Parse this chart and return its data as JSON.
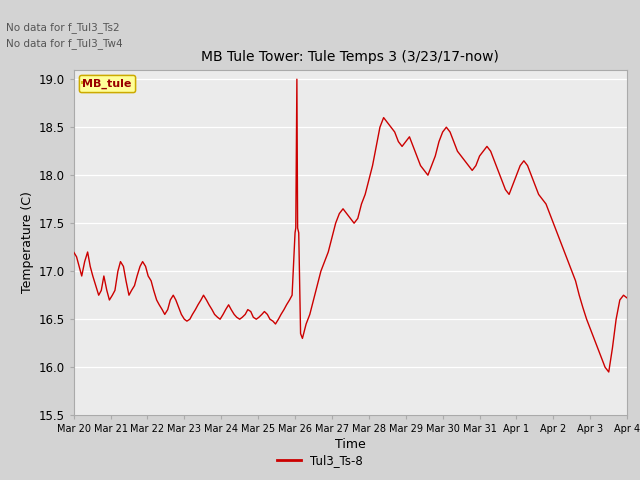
{
  "title": "MB Tule Tower: Tule Temps 3 (3/23/17-now)",
  "xlabel": "Time",
  "ylabel": "Temperature (C)",
  "ylim": [
    15.5,
    19.1
  ],
  "xlim": [
    0,
    15
  ],
  "fig_bg": "#d3d3d3",
  "plot_bg": "#ebebeb",
  "line_color": "#cc0000",
  "legend_label": "Tul3_Ts-8",
  "no_data_text1": "No data for f_Tul3_Ts2",
  "no_data_text2": "No data for f_Tul3_Tw4",
  "mb_tule_label": "MB_tule",
  "yticks": [
    15.5,
    16.0,
    16.5,
    17.0,
    17.5,
    18.0,
    18.5,
    19.0
  ],
  "xtick_labels": [
    "Mar 20",
    "Mar 21",
    "Mar 22",
    "Mar 23",
    "Mar 24",
    "Mar 25",
    "Mar 26",
    "Mar 27",
    "Mar 28",
    "Mar 29",
    "Mar 30",
    "Mar 31",
    "Apr 1",
    "Apr 2",
    "Apr 3",
    "Apr 4"
  ],
  "time_points": [
    0.0,
    0.08,
    0.15,
    0.22,
    0.3,
    0.38,
    0.45,
    0.52,
    0.6,
    0.68,
    0.75,
    0.82,
    0.9,
    0.97,
    1.05,
    1.12,
    1.2,
    1.27,
    1.35,
    1.42,
    1.5,
    1.57,
    1.65,
    1.72,
    1.8,
    1.87,
    1.95,
    2.02,
    2.1,
    2.17,
    2.25,
    2.32,
    2.4,
    2.47,
    2.55,
    2.62,
    2.7,
    2.77,
    2.85,
    2.92,
    3.0,
    3.07,
    3.15,
    3.22,
    3.3,
    3.37,
    3.45,
    3.52,
    3.6,
    3.67,
    3.75,
    3.82,
    3.9,
    3.97,
    4.05,
    4.12,
    4.2,
    4.27,
    4.35,
    4.42,
    4.5,
    4.57,
    4.65,
    4.72,
    4.8,
    4.87,
    4.95,
    5.02,
    5.1,
    5.17,
    5.25,
    5.32,
    5.4,
    5.47,
    5.55,
    5.62,
    5.7,
    5.77,
    5.85,
    5.92,
    6.0,
    6.02,
    6.05,
    6.07,
    6.1,
    6.15,
    6.2,
    6.3,
    6.4,
    6.5,
    6.6,
    6.7,
    6.8,
    6.9,
    7.0,
    7.1,
    7.2,
    7.3,
    7.4,
    7.5,
    7.6,
    7.7,
    7.8,
    7.9,
    8.0,
    8.1,
    8.2,
    8.3,
    8.4,
    8.5,
    8.6,
    8.7,
    8.8,
    8.9,
    9.0,
    9.1,
    9.2,
    9.3,
    9.4,
    9.5,
    9.6,
    9.7,
    9.8,
    9.9,
    10.0,
    10.1,
    10.2,
    10.3,
    10.4,
    10.5,
    10.6,
    10.7,
    10.8,
    10.9,
    11.0,
    11.1,
    11.2,
    11.3,
    11.4,
    11.5,
    11.6,
    11.7,
    11.8,
    11.9,
    12.0,
    12.1,
    12.2,
    12.3,
    12.4,
    12.5,
    12.6,
    12.7,
    12.8,
    12.9,
    13.0,
    13.1,
    13.2,
    13.3,
    13.4,
    13.5,
    13.6,
    13.7,
    13.8,
    13.9,
    14.0,
    14.1,
    14.2,
    14.3,
    14.4,
    14.5,
    14.6,
    14.7,
    14.8,
    14.9,
    15.0
  ],
  "temp_values": [
    17.2,
    17.15,
    17.05,
    16.95,
    17.1,
    17.2,
    17.05,
    16.95,
    16.85,
    16.75,
    16.8,
    16.95,
    16.8,
    16.7,
    16.75,
    16.8,
    17.0,
    17.1,
    17.05,
    16.9,
    16.75,
    16.8,
    16.85,
    16.95,
    17.05,
    17.1,
    17.05,
    16.95,
    16.9,
    16.8,
    16.7,
    16.65,
    16.6,
    16.55,
    16.6,
    16.7,
    16.75,
    16.7,
    16.62,
    16.55,
    16.5,
    16.48,
    16.5,
    16.55,
    16.6,
    16.65,
    16.7,
    16.75,
    16.7,
    16.65,
    16.6,
    16.55,
    16.52,
    16.5,
    16.55,
    16.6,
    16.65,
    16.6,
    16.55,
    16.52,
    16.5,
    16.52,
    16.55,
    16.6,
    16.58,
    16.52,
    16.5,
    16.52,
    16.55,
    16.58,
    16.55,
    16.5,
    16.48,
    16.45,
    16.5,
    16.55,
    16.6,
    16.65,
    16.7,
    16.75,
    17.4,
    17.45,
    19.0,
    17.45,
    17.4,
    16.35,
    16.3,
    16.45,
    16.55,
    16.7,
    16.85,
    17.0,
    17.1,
    17.2,
    17.35,
    17.5,
    17.6,
    17.65,
    17.6,
    17.55,
    17.5,
    17.55,
    17.7,
    17.8,
    17.95,
    18.1,
    18.3,
    18.5,
    18.6,
    18.55,
    18.5,
    18.45,
    18.35,
    18.3,
    18.35,
    18.4,
    18.3,
    18.2,
    18.1,
    18.05,
    18.0,
    18.1,
    18.2,
    18.35,
    18.45,
    18.5,
    18.45,
    18.35,
    18.25,
    18.2,
    18.15,
    18.1,
    18.05,
    18.1,
    18.2,
    18.25,
    18.3,
    18.25,
    18.15,
    18.05,
    17.95,
    17.85,
    17.8,
    17.9,
    18.0,
    18.1,
    18.15,
    18.1,
    18.0,
    17.9,
    17.8,
    17.75,
    17.7,
    17.6,
    17.5,
    17.4,
    17.3,
    17.2,
    17.1,
    17.0,
    16.9,
    16.75,
    16.62,
    16.5,
    16.4,
    16.3,
    16.2,
    16.1,
    16.0,
    15.95,
    16.2,
    16.5,
    16.7,
    16.75,
    16.72
  ]
}
